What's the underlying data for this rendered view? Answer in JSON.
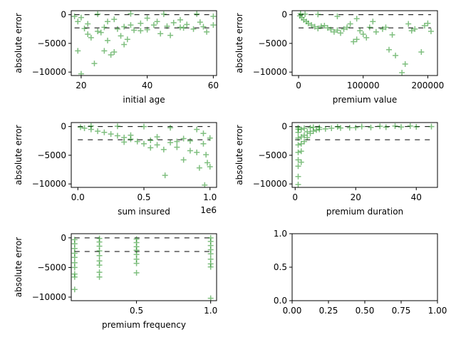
{
  "chart_data": [
    {
      "type": "scatter",
      "xlabel": "initial age",
      "ylabel": "absolute error",
      "xlim": [
        17,
        61
      ],
      "ylim": [
        -10600,
        700
      ],
      "xticks": [
        {
          "value": 20,
          "label": "20"
        },
        {
          "value": 40,
          "label": "40"
        },
        {
          "value": 60,
          "label": "60"
        }
      ],
      "yticks": [
        {
          "value": 0,
          "label": "0"
        },
        {
          "value": -5000,
          "label": "−5000"
        },
        {
          "value": -10000,
          "label": "−10000"
        }
      ],
      "ref_lines": [
        {
          "y": 0,
          "x": [
            18,
            60
          ]
        },
        {
          "y": -2300,
          "x": [
            18,
            60
          ]
        }
      ],
      "points": [
        [
          18,
          -300
        ],
        [
          19,
          -1200
        ],
        [
          19,
          -6300
        ],
        [
          20,
          -10300
        ],
        [
          21,
          -2400
        ],
        [
          22,
          -1600
        ],
        [
          23,
          -4000
        ],
        [
          24,
          -8500
        ],
        [
          25,
          -2900
        ],
        [
          26,
          -3100
        ],
        [
          27,
          -2200
        ],
        [
          28,
          -1200
        ],
        [
          29,
          -7000
        ],
        [
          30,
          -6500
        ],
        [
          31,
          -2500
        ],
        [
          32,
          -3700
        ],
        [
          33,
          -2100
        ],
        [
          34,
          -4300
        ],
        [
          35,
          -1800
        ],
        [
          36,
          -2700
        ],
        [
          38,
          -1500
        ],
        [
          40,
          -2600
        ],
        [
          42,
          -1800
        ],
        [
          44,
          -3300
        ],
        [
          46,
          -2000
        ],
        [
          48,
          -1400
        ],
        [
          50,
          -2200
        ],
        [
          52,
          -1700
        ],
        [
          54,
          -2500
        ],
        [
          56,
          -1300
        ],
        [
          58,
          -3000
        ],
        [
          60,
          -1800
        ],
        [
          20,
          -500
        ],
        [
          30,
          -800
        ],
        [
          40,
          -600
        ],
        [
          50,
          -900
        ],
        [
          60,
          -300
        ],
        [
          25,
          100
        ],
        [
          35,
          150
        ],
        [
          45,
          100
        ],
        [
          55,
          120
        ],
        [
          22,
          -3400
        ],
        [
          28,
          -4500
        ],
        [
          33,
          -5200
        ],
        [
          27,
          -6300
        ],
        [
          38,
          -2800
        ],
        [
          43,
          -1200
        ],
        [
          47,
          -3600
        ],
        [
          51,
          -2300
        ],
        [
          57,
          -2100
        ]
      ]
    },
    {
      "type": "scatter",
      "xlabel": "premium value",
      "ylabel": "absolute error",
      "xlim": [
        -10000,
        215000
      ],
      "ylim": [
        -10600,
        700
      ],
      "xticks": [
        {
          "value": 0,
          "label": "0"
        },
        {
          "value": 100000,
          "label": "100000"
        },
        {
          "value": 200000,
          "label": "200000"
        }
      ],
      "yticks": [
        {
          "value": 0,
          "label": "0"
        },
        {
          "value": -5000,
          "label": "−5000"
        },
        {
          "value": -10000,
          "label": "−10000"
        }
      ],
      "ref_lines": [
        {
          "y": 0,
          "x": [
            0,
            205000
          ]
        },
        {
          "y": -2300,
          "x": [
            0,
            205000
          ]
        }
      ],
      "points": [
        [
          2000,
          -200
        ],
        [
          5000,
          -500
        ],
        [
          8000,
          -900
        ],
        [
          12000,
          -1200
        ],
        [
          15000,
          -1500
        ],
        [
          20000,
          -1800
        ],
        [
          25000,
          -2100
        ],
        [
          30000,
          -2400
        ],
        [
          35000,
          -2000
        ],
        [
          40000,
          -1900
        ],
        [
          45000,
          -2300
        ],
        [
          50000,
          -2600
        ],
        [
          55000,
          -3000
        ],
        [
          60000,
          -2700
        ],
        [
          65000,
          -3200
        ],
        [
          70000,
          -2500
        ],
        [
          75000,
          -2200
        ],
        [
          80000,
          -1600
        ],
        [
          85000,
          -4700
        ],
        [
          90000,
          -4300
        ],
        [
          95000,
          -2800
        ],
        [
          100000,
          -3400
        ],
        [
          105000,
          -4000
        ],
        [
          110000,
          -2200
        ],
        [
          120000,
          -3000
        ],
        [
          130000,
          -2500
        ],
        [
          140000,
          -6100
        ],
        [
          150000,
          -7100
        ],
        [
          160000,
          -10100
        ],
        [
          165000,
          -8600
        ],
        [
          170000,
          -1600
        ],
        [
          180000,
          -2500
        ],
        [
          190000,
          -6500
        ],
        [
          195000,
          -1900
        ],
        [
          205000,
          -2900
        ],
        [
          3000,
          150
        ],
        [
          10000,
          100
        ],
        [
          30000,
          50
        ],
        [
          60000,
          -300
        ],
        [
          90000,
          -700
        ],
        [
          115000,
          -1200
        ],
        [
          135000,
          -2200
        ],
        [
          145000,
          -3500
        ],
        [
          175000,
          -2800
        ],
        [
          200000,
          -1500
        ]
      ]
    },
    {
      "type": "scatter",
      "xlabel": "sum insured",
      "ylabel": "absolute error",
      "x_offset_label": "1e6",
      "xlim": [
        -0.05,
        1.05
      ],
      "ylim": [
        -10600,
        700
      ],
      "xticks": [
        {
          "value": 0.0,
          "label": "0.0"
        },
        {
          "value": 0.5,
          "label": "0.5"
        },
        {
          "value": 1.0,
          "label": "1.0"
        }
      ],
      "yticks": [
        {
          "value": 0,
          "label": "0"
        },
        {
          "value": -5000,
          "label": "−5000"
        },
        {
          "value": -10000,
          "label": "−10000"
        }
      ],
      "ref_lines": [
        {
          "y": 0,
          "x": [
            0.0,
            1.0
          ]
        },
        {
          "y": -2300,
          "x": [
            0.0,
            1.0
          ]
        }
      ],
      "points": [
        [
          0.02,
          -100
        ],
        [
          0.05,
          -300
        ],
        [
          0.1,
          -500
        ],
        [
          0.15,
          -800
        ],
        [
          0.2,
          -1000
        ],
        [
          0.25,
          -1300
        ],
        [
          0.3,
          -1600
        ],
        [
          0.35,
          -1900
        ],
        [
          0.4,
          -2200
        ],
        [
          0.45,
          -2600
        ],
        [
          0.5,
          -3000
        ],
        [
          0.55,
          -2400
        ],
        [
          0.6,
          -3200
        ],
        [
          0.65,
          -4000
        ],
        [
          0.66,
          -8500
        ],
        [
          0.7,
          -2800
        ],
        [
          0.75,
          -3600
        ],
        [
          0.8,
          -5800
        ],
        [
          0.85,
          -2500
        ],
        [
          0.9,
          -4500
        ],
        [
          0.92,
          -7200
        ],
        [
          0.95,
          -3000
        ],
        [
          0.96,
          -10200
        ],
        [
          0.97,
          -4900
        ],
        [
          0.98,
          -6300
        ],
        [
          1.0,
          -7000
        ],
        [
          1.0,
          -2000
        ],
        [
          0.1,
          100
        ],
        [
          0.3,
          50
        ],
        [
          0.5,
          0
        ],
        [
          0.7,
          -200
        ],
        [
          0.9,
          -500
        ],
        [
          0.4,
          -1500
        ],
        [
          0.6,
          -1800
        ],
        [
          0.8,
          -2100
        ],
        [
          0.95,
          -1200
        ],
        [
          0.85,
          -4200
        ],
        [
          0.75,
          -2600
        ],
        [
          0.55,
          -3700
        ],
        [
          0.35,
          -2700
        ]
      ]
    },
    {
      "type": "scatter",
      "xlabel": "premium duration",
      "ylabel": "absolute error",
      "xlim": [
        -1,
        47
      ],
      "ylim": [
        -10600,
        700
      ],
      "xticks": [
        {
          "value": 0,
          "label": "0"
        },
        {
          "value": 20,
          "label": "20"
        },
        {
          "value": 40,
          "label": "40"
        }
      ],
      "yticks": [
        {
          "value": 0,
          "label": "0"
        },
        {
          "value": -5000,
          "label": "−5000"
        },
        {
          "value": -10000,
          "label": "−10000"
        }
      ],
      "ref_lines": [
        {
          "y": 0,
          "x": [
            0,
            45
          ]
        },
        {
          "y": -2300,
          "x": [
            0,
            45
          ]
        }
      ],
      "points": [
        [
          1,
          -10100
        ],
        [
          1,
          -8700
        ],
        [
          1,
          -6900
        ],
        [
          1,
          -5800
        ],
        [
          1,
          -4500
        ],
        [
          1,
          -3200
        ],
        [
          1,
          -2000
        ],
        [
          1,
          -1000
        ],
        [
          2,
          -6200
        ],
        [
          2,
          -4300
        ],
        [
          2,
          -3000
        ],
        [
          2,
          -1800
        ],
        [
          3,
          -2600
        ],
        [
          3,
          -1500
        ],
        [
          4,
          -1900
        ],
        [
          4,
          -900
        ],
        [
          5,
          -1200
        ],
        [
          6,
          -800
        ],
        [
          7,
          -600
        ],
        [
          8,
          -500
        ],
        [
          10,
          -400
        ],
        [
          12,
          -300
        ],
        [
          15,
          -250
        ],
        [
          18,
          -200
        ],
        [
          20,
          -180
        ],
        [
          25,
          -150
        ],
        [
          30,
          -100
        ],
        [
          35,
          -80
        ],
        [
          40,
          -50
        ],
        [
          45,
          0
        ],
        [
          2,
          -500
        ],
        [
          3,
          -300
        ],
        [
          5,
          -200
        ],
        [
          8,
          -150
        ],
        [
          1,
          -200
        ],
        [
          1,
          -500
        ],
        [
          6,
          -100
        ],
        [
          14,
          -50
        ],
        [
          22,
          0
        ],
        [
          28,
          50
        ],
        [
          33,
          80
        ],
        [
          38,
          100
        ]
      ]
    },
    {
      "type": "scatter",
      "xlabel": "premium frequency",
      "ylabel": "absolute error",
      "xlim": [
        0.06,
        1.04
      ],
      "ylim": [
        -10600,
        700
      ],
      "xticks": [
        {
          "value": 0.5,
          "label": "0.5"
        },
        {
          "value": 1.0,
          "label": "1.0"
        }
      ],
      "yticks": [
        {
          "value": 0,
          "label": "0"
        },
        {
          "value": -5000,
          "label": "−5000"
        },
        {
          "value": -10000,
          "label": "−10000"
        }
      ],
      "ref_lines": [
        {
          "y": 0,
          "x": [
            0.083,
            1.0
          ]
        },
        {
          "y": -2300,
          "x": [
            0.083,
            1.0
          ]
        }
      ],
      "points": [
        [
          0.083,
          -8700
        ],
        [
          0.083,
          -6600
        ],
        [
          0.083,
          -6100
        ],
        [
          0.083,
          -5000
        ],
        [
          0.083,
          -4200
        ],
        [
          0.083,
          -3300
        ],
        [
          0.083,
          -2600
        ],
        [
          0.083,
          -1800
        ],
        [
          0.083,
          -1000
        ],
        [
          0.083,
          -300
        ],
        [
          0.25,
          -6600
        ],
        [
          0.25,
          -5800
        ],
        [
          0.25,
          -4600
        ],
        [
          0.25,
          -3900
        ],
        [
          0.25,
          -3000
        ],
        [
          0.25,
          -2200
        ],
        [
          0.25,
          -1400
        ],
        [
          0.25,
          -700
        ],
        [
          0.25,
          -100
        ],
        [
          0.5,
          -5900
        ],
        [
          0.5,
          -4300
        ],
        [
          0.5,
          -3600
        ],
        [
          0.5,
          -2800
        ],
        [
          0.5,
          -2100
        ],
        [
          0.5,
          -1500
        ],
        [
          0.5,
          -800
        ],
        [
          0.5,
          -200
        ],
        [
          1.0,
          -10200
        ],
        [
          1.0,
          -4900
        ],
        [
          1.0,
          -4400
        ],
        [
          1.0,
          -3600
        ],
        [
          1.0,
          -2700
        ],
        [
          1.0,
          -2000
        ],
        [
          1.0,
          -1300
        ],
        [
          1.0,
          -600
        ],
        [
          1.0,
          0
        ]
      ]
    },
    {
      "type": "scatter",
      "xlabel": "",
      "ylabel": "",
      "xlim": [
        0,
        1
      ],
      "ylim": [
        0,
        1
      ],
      "xticks": [
        {
          "value": 0.0,
          "label": "0.00"
        },
        {
          "value": 0.25,
          "label": "0.25"
        },
        {
          "value": 0.5,
          "label": "0.50"
        },
        {
          "value": 0.75,
          "label": "0.75"
        },
        {
          "value": 1.0,
          "label": "1.00"
        }
      ],
      "yticks": [
        {
          "value": 0.0,
          "label": "0.0"
        },
        {
          "value": 0.5,
          "label": "0.5"
        },
        {
          "value": 1.0,
          "label": "1.0"
        }
      ],
      "ref_lines": [],
      "points": []
    }
  ],
  "style": {
    "marker_color": "#008000",
    "ref_line_color": "#000000"
  }
}
